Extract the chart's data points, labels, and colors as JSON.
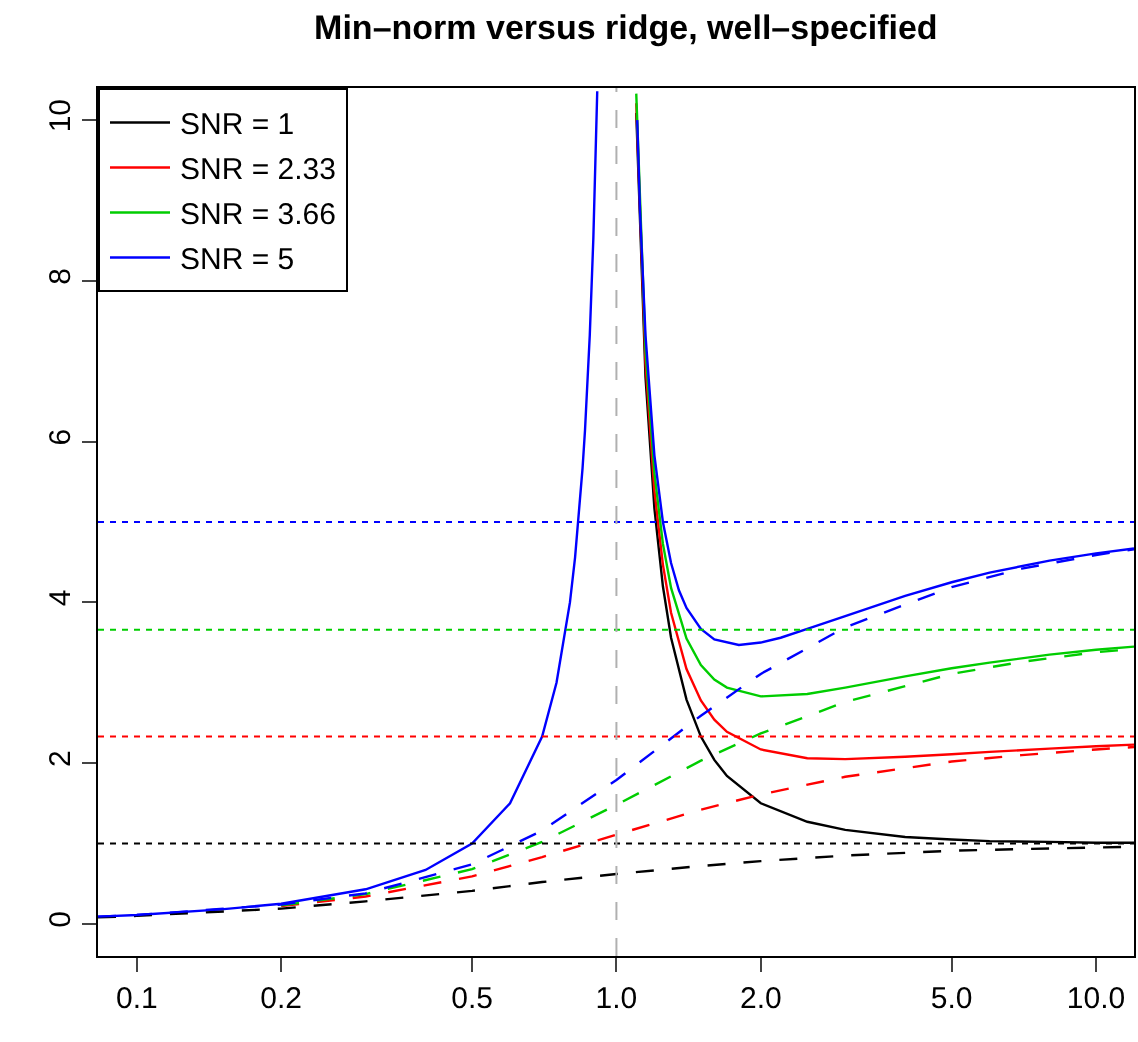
{
  "chart_data": {
    "type": "line",
    "title": "Min–norm versus ridge, well–specified",
    "xlim": [
      0.083,
      12
    ],
    "xticks": [
      {
        "value": 0.1,
        "label": "0.1"
      },
      {
        "value": 0.2,
        "label": "0.2"
      },
      {
        "value": 0.5,
        "label": "0.5"
      },
      {
        "value": 1,
        "label": "1.0"
      },
      {
        "value": 2,
        "label": "2.0"
      },
      {
        "value": 5,
        "label": "5.0"
      },
      {
        "value": 10,
        "label": "10.0"
      }
    ],
    "ylim": [
      -0.4,
      10.4
    ],
    "yticks": [
      0,
      2,
      4,
      6,
      8,
      10
    ],
    "log": "x",
    "legend": "top left",
    "series": [
      {
        "name": "SNR = 1",
        "color": "#000000",
        "line_style": "solid",
        "x": [
          1.1,
          1.15,
          1.2,
          1.25,
          1.3,
          1.4,
          1.5,
          1.6,
          1.7,
          2,
          2.5,
          3,
          4,
          5,
          6,
          8,
          10,
          12
        ],
        "values": [
          10.09,
          6.8,
          5.17,
          4.2,
          3.56,
          2.79,
          2.33,
          2.04,
          1.84,
          1.5,
          1.27,
          1.17,
          1.08,
          1.05,
          1.03,
          1.02,
          1.01,
          1.01
        ]
      },
      {
        "name": "SNR = 2.33",
        "color": "#ff0000",
        "line_style": "solid",
        "x": [
          1.1,
          1.15,
          1.2,
          1.25,
          1.3,
          1.4,
          1.5,
          1.6,
          1.7,
          2,
          2.5,
          3,
          4,
          5,
          6,
          8,
          10,
          12
        ],
        "values": [
          10.21,
          6.97,
          5.39,
          4.47,
          3.87,
          3.17,
          2.78,
          2.54,
          2.39,
          2.17,
          2.06,
          2.05,
          2.08,
          2.11,
          2.14,
          2.18,
          2.21,
          2.23
        ]
      },
      {
        "name": "SNR = 3.66",
        "color": "#00cd00",
        "line_style": "solid",
        "x": [
          1.1,
          1.15,
          1.2,
          1.25,
          1.3,
          1.4,
          1.5,
          1.6,
          1.7,
          2,
          2.5,
          3,
          4,
          5,
          6,
          8,
          10,
          12
        ],
        "values": [
          10.33,
          7.14,
          5.61,
          4.73,
          4.18,
          3.55,
          3.22,
          3.04,
          2.94,
          2.83,
          2.86,
          2.94,
          3.08,
          3.18,
          3.25,
          3.35,
          3.41,
          3.45
        ]
      },
      {
        "name": "SNR = 5",
        "color": "#0000ff",
        "line_style": "solid",
        "x": [
          0.083,
          0.1,
          0.15,
          0.2,
          0.3,
          0.4,
          0.5,
          0.6,
          0.7,
          0.75,
          0.8,
          0.82,
          0.85,
          0.86,
          0.88,
          0.895,
          0.912,
          null,
          1.105,
          1.12,
          1.15,
          1.2,
          1.25,
          1.3,
          1.35,
          1.4,
          1.5,
          1.6,
          1.8,
          2,
          2.2,
          2.5,
          3,
          4,
          5,
          6,
          8,
          10,
          12
        ],
        "values": [
          0.09,
          0.11,
          0.18,
          0.25,
          0.43,
          0.67,
          1.0,
          1.5,
          2.33,
          3.0,
          4.0,
          4.56,
          5.67,
          6.14,
          7.33,
          8.52,
          10.36,
          null,
          10.0,
          8.87,
          7.32,
          5.83,
          5.0,
          4.49,
          4.15,
          3.93,
          3.67,
          3.54,
          3.47,
          3.5,
          3.56,
          3.67,
          3.83,
          4.08,
          4.25,
          4.37,
          4.52,
          4.61,
          4.67
        ]
      },
      {
        "color": "#000000",
        "line_style": "dashed",
        "x": [
          0.083,
          0.1,
          0.2,
          0.3,
          0.5,
          0.7,
          1,
          1.5,
          2,
          3,
          5,
          7,
          10,
          12
        ],
        "values": [
          0.08,
          0.1,
          0.19,
          0.28,
          0.41,
          0.52,
          0.62,
          0.72,
          0.78,
          0.85,
          0.91,
          0.93,
          0.95,
          0.96
        ]
      },
      {
        "color": "#ff0000",
        "line_style": "dashed",
        "x": [
          0.2,
          0.3,
          0.5,
          0.7,
          1,
          1.5,
          2,
          3,
          5,
          7,
          10,
          12
        ],
        "values": [
          0.22,
          0.34,
          0.59,
          0.83,
          1.11,
          1.42,
          1.61,
          1.83,
          2.02,
          2.1,
          2.17,
          2.2
        ]
      },
      {
        "color": "#00cd00",
        "line_style": "dashed",
        "x": [
          0.2,
          0.3,
          0.5,
          0.7,
          1,
          1.5,
          2,
          3,
          5,
          7,
          10,
          12
        ],
        "values": [
          0.23,
          0.37,
          0.68,
          1.02,
          1.48,
          2.03,
          2.37,
          2.76,
          3.11,
          3.26,
          3.38,
          3.42
        ]
      },
      {
        "color": "#0000ff",
        "line_style": "dashed",
        "x": [
          0.083,
          0.1,
          0.2,
          0.3,
          0.5,
          0.7,
          1,
          1.5,
          2,
          3,
          5,
          7,
          10,
          12
        ],
        "values": [
          0.09,
          0.11,
          0.24,
          0.38,
          0.74,
          1.16,
          1.79,
          2.59,
          3.11,
          3.69,
          4.19,
          4.42,
          4.59,
          4.66
        ]
      }
    ],
    "ref_lines": [
      {
        "axis": "y",
        "value": 1,
        "color": "#000000",
        "line_style": "dotted"
      },
      {
        "axis": "y",
        "value": 2.33,
        "color": "#ff0000",
        "line_style": "dotted"
      },
      {
        "axis": "y",
        "value": 3.66,
        "color": "#00cd00",
        "line_style": "dotted"
      },
      {
        "axis": "y",
        "value": 5,
        "color": "#0000ff",
        "line_style": "dotted"
      },
      {
        "axis": "x",
        "value": 1,
        "color": "#b0b0b0",
        "line_style": "dashed"
      }
    ]
  }
}
